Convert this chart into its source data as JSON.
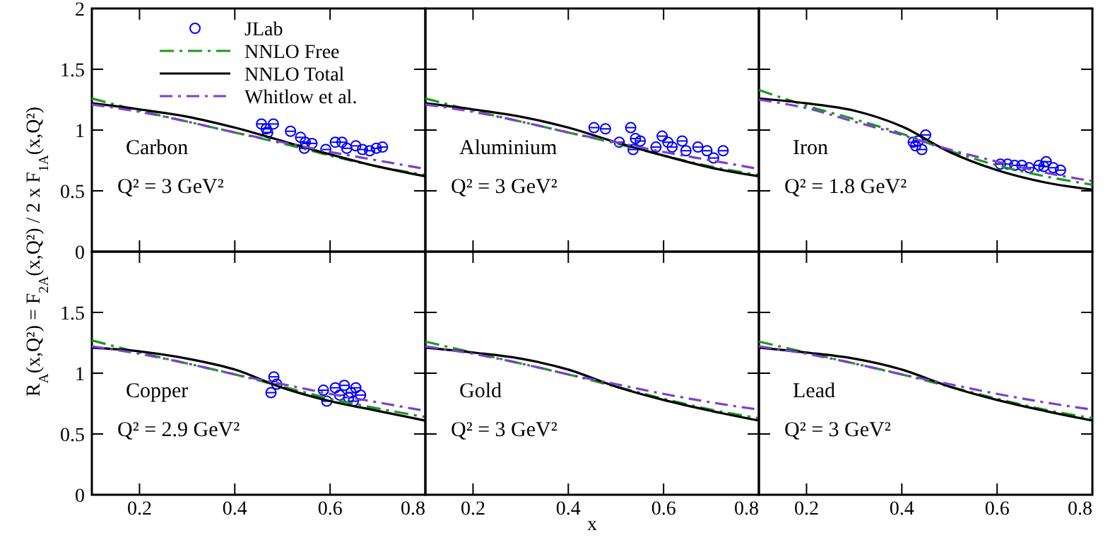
{
  "chart_data": [
    {
      "type": "line",
      "ylabel": "R$_{A}$(x,Q²) = F$_{2A}$(x,Q²) / 2 x F$_{1A}$(x,Q²)",
      "annotations": [
        "Carbon",
        "Q² = 3 GeV²"
      ],
      "xlim": [
        0.1,
        0.8
      ],
      "ylim": [
        0,
        2
      ],
      "xticks": [
        0.2,
        0.4,
        0.6,
        0.8
      ],
      "yticks": [
        0,
        0.5,
        1,
        1.5,
        2
      ],
      "tick_labels": "y",
      "legend": "top",
      "series": [
        {
          "name": "JLab",
          "type": "scatter",
          "marker": "circle",
          "color": "#0000ff",
          "x": [
            0.456,
            0.466,
            0.481,
            0.469,
            0.517,
            0.538,
            0.548,
            0.562,
            0.546,
            0.591,
            0.611,
            0.625,
            0.635,
            0.654,
            0.668,
            0.683,
            0.697,
            0.71
          ],
          "values": [
            1.05,
            1.01,
            1.05,
            0.98,
            0.99,
            0.94,
            0.9,
            0.89,
            0.85,
            0.84,
            0.9,
            0.9,
            0.85,
            0.87,
            0.84,
            0.83,
            0.85,
            0.86
          ],
          "xerrors": [
            0.01,
            0.01,
            0.01,
            0.01,
            0.01,
            0.01,
            0.01,
            0.01,
            0.01,
            0.01,
            0.01,
            0.01,
            0.01,
            0.01,
            0.01,
            0.01,
            0.01,
            0.01
          ]
        },
        {
          "name": "NNLO Free",
          "type": "line",
          "line_style": "dashdot",
          "color": "#1a9a1a",
          "x": [
            0.1,
            0.2,
            0.3,
            0.4,
            0.5,
            0.6,
            0.7,
            0.8
          ],
          "values": [
            1.26,
            1.16,
            1.07,
            0.98,
            0.89,
            0.79,
            0.7,
            0.63
          ]
        },
        {
          "name": "NNLO Total",
          "type": "line",
          "line_style": "solid",
          "color": "#000000",
          "x": [
            0.1,
            0.2,
            0.3,
            0.4,
            0.5,
            0.6,
            0.7,
            0.8
          ],
          "values": [
            1.22,
            1.17,
            1.11,
            1.02,
            0.91,
            0.8,
            0.7,
            0.62
          ]
        },
        {
          "name": "Whitlow et al.",
          "type": "line",
          "line_style": "dashed",
          "color": "#7b3fd0",
          "x": [
            0.1,
            0.2,
            0.3,
            0.4,
            0.5,
            0.6,
            0.7,
            0.8
          ],
          "values": [
            1.21,
            1.15,
            1.07,
            0.98,
            0.9,
            0.82,
            0.75,
            0.68
          ]
        }
      ]
    },
    {
      "type": "line",
      "annotations": [
        "Aluminium",
        "Q² = 3 GeV²"
      ],
      "xlim": [
        0.1,
        0.8
      ],
      "ylim": [
        0,
        2
      ],
      "xticks": [
        0.2,
        0.4,
        0.6,
        0.8
      ],
      "yticks": [
        0,
        0.5,
        1,
        1.5,
        2
      ],
      "tick_labels": false,
      "series": [
        {
          "type": "scatter",
          "marker": "circle",
          "color": "#0000ff",
          "x": [
            0.454,
            0.478,
            0.531,
            0.507,
            0.536,
            0.541,
            0.551,
            0.584,
            0.597,
            0.609,
            0.618,
            0.639,
            0.647,
            0.672,
            0.691,
            0.705,
            0.725
          ],
          "values": [
            1.02,
            1.01,
            1.02,
            0.9,
            0.84,
            0.93,
            0.91,
            0.86,
            0.95,
            0.9,
            0.86,
            0.91,
            0.83,
            0.86,
            0.83,
            0.77,
            0.83
          ],
          "xerrors": [
            0.01,
            0.01,
            0.01,
            0.01,
            0.01,
            0.01,
            0.01,
            0.01,
            0.01,
            0.01,
            0.01,
            0.01,
            0.01,
            0.01,
            0.01,
            0.01,
            0.01
          ]
        },
        {
          "type": "line",
          "line_style": "dashdot",
          "color": "#1a9a1a",
          "x": [
            0.1,
            0.2,
            0.3,
            0.4,
            0.5,
            0.6,
            0.7,
            0.8
          ],
          "values": [
            1.26,
            1.16,
            1.07,
            0.98,
            0.89,
            0.79,
            0.7,
            0.63
          ]
        },
        {
          "type": "line",
          "line_style": "solid",
          "color": "#000000",
          "x": [
            0.1,
            0.2,
            0.3,
            0.4,
            0.5,
            0.6,
            0.7,
            0.8
          ],
          "values": [
            1.22,
            1.17,
            1.11,
            1.02,
            0.9,
            0.79,
            0.69,
            0.62
          ]
        },
        {
          "type": "line",
          "line_style": "dashed",
          "color": "#7b3fd0",
          "x": [
            0.1,
            0.2,
            0.3,
            0.4,
            0.5,
            0.6,
            0.7,
            0.8
          ],
          "values": [
            1.21,
            1.15,
            1.07,
            0.98,
            0.9,
            0.82,
            0.75,
            0.68
          ]
        }
      ]
    },
    {
      "type": "line",
      "annotations": [
        "Iron",
        "Q² = 1.8 GeV²"
      ],
      "xlim": [
        0.1,
        0.8
      ],
      "ylim": [
        0,
        2
      ],
      "xticks": [
        0.2,
        0.4,
        0.6,
        0.8
      ],
      "yticks": [
        0,
        0.5,
        1,
        1.5,
        2
      ],
      "tick_labels": false,
      "series": [
        {
          "type": "scatter",
          "marker": "circle",
          "color": "#0000ff",
          "x": [
            0.424,
            0.434,
            0.45,
            0.429,
            0.442,
            0.607,
            0.622,
            0.637,
            0.652,
            0.667,
            0.688,
            0.698,
            0.703,
            0.718,
            0.733
          ],
          "values": [
            0.9,
            0.91,
            0.96,
            0.87,
            0.84,
            0.72,
            0.72,
            0.71,
            0.71,
            0.69,
            0.71,
            0.7,
            0.74,
            0.69,
            0.67
          ],
          "xerrors": [
            0.01,
            0.01,
            0.01,
            0.01,
            0.01,
            0.01,
            0.01,
            0.01,
            0.01,
            0.01,
            0.01,
            0.01,
            0.01,
            0.01,
            0.01
          ]
        },
        {
          "type": "line",
          "line_style": "dashdot",
          "color": "#1a9a1a",
          "x": [
            0.1,
            0.2,
            0.3,
            0.4,
            0.5,
            0.6,
            0.7,
            0.8
          ],
          "values": [
            1.33,
            1.2,
            1.09,
            0.97,
            0.83,
            0.71,
            0.62,
            0.55
          ]
        },
        {
          "type": "line",
          "line_style": "solid",
          "color": "#000000",
          "x": [
            0.1,
            0.2,
            0.3,
            0.4,
            0.5,
            0.6,
            0.7,
            0.8
          ],
          "values": [
            1.26,
            1.22,
            1.16,
            1.03,
            0.82,
            0.67,
            0.57,
            0.51
          ]
        },
        {
          "type": "line",
          "line_style": "dashed",
          "color": "#7b3fd0",
          "x": [
            0.1,
            0.2,
            0.3,
            0.4,
            0.5,
            0.6,
            0.7,
            0.8
          ],
          "values": [
            1.25,
            1.18,
            1.07,
            0.96,
            0.84,
            0.74,
            0.65,
            0.58
          ]
        }
      ]
    },
    {
      "type": "line",
      "annotations": [
        "Copper",
        "Q² = 2.9 GeV²"
      ],
      "xlim": [
        0.1,
        0.8
      ],
      "ylim": [
        0,
        2
      ],
      "xticks": [
        0.2,
        0.4,
        0.6,
        0.8
      ],
      "yticks": [
        0,
        0.5,
        1,
        1.5
      ],
      "series": [
        {
          "type": "scatter",
          "marker": "circle",
          "color": "#0000ff",
          "x": [
            0.482,
            0.488,
            0.476,
            0.586,
            0.593,
            0.611,
            0.62,
            0.63,
            0.639,
            0.644,
            0.649,
            0.654,
            0.664
          ],
          "values": [
            0.97,
            0.91,
            0.84,
            0.86,
            0.77,
            0.88,
            0.82,
            0.9,
            0.8,
            0.84,
            0.77,
            0.88,
            0.82
          ],
          "xerrors": [
            0.01,
            0.01,
            0.01,
            0.01,
            0.01,
            0.01,
            0.01,
            0.01,
            0.01,
            0.01,
            0.01,
            0.01,
            0.01
          ]
        },
        {
          "type": "line",
          "line_style": "dashdot",
          "color": "#1a9a1a",
          "x": [
            0.1,
            0.2,
            0.3,
            0.4,
            0.5,
            0.6,
            0.7,
            0.8
          ],
          "values": [
            1.27,
            1.17,
            1.08,
            0.99,
            0.89,
            0.79,
            0.71,
            0.64
          ]
        },
        {
          "type": "line",
          "line_style": "solid",
          "color": "#000000",
          "x": [
            0.1,
            0.2,
            0.3,
            0.4,
            0.5,
            0.6,
            0.7,
            0.8
          ],
          "values": [
            1.21,
            1.18,
            1.12,
            1.03,
            0.88,
            0.77,
            0.69,
            0.61
          ]
        },
        {
          "type": "line",
          "line_style": "dashed",
          "color": "#7b3fd0",
          "x": [
            0.1,
            0.2,
            0.3,
            0.4,
            0.5,
            0.6,
            0.7,
            0.8
          ],
          "values": [
            1.22,
            1.16,
            1.08,
            0.99,
            0.91,
            0.83,
            0.76,
            0.69
          ]
        }
      ]
    },
    {
      "type": "line",
      "xlabel": "x",
      "annotations": [
        "Gold",
        "Q² = 3 GeV²"
      ],
      "xlim": [
        0.1,
        0.8
      ],
      "ylim": [
        0,
        2
      ],
      "xticks": [
        0.2,
        0.4,
        0.6,
        0.8
      ],
      "yticks": [
        0,
        0.5,
        1,
        1.5,
        2
      ],
      "tick_labels": "x",
      "series": [
        {
          "type": "line",
          "line_style": "dashdot",
          "color": "#1a9a1a",
          "x": [
            0.1,
            0.2,
            0.3,
            0.4,
            0.5,
            0.6,
            0.7,
            0.8
          ],
          "values": [
            1.26,
            1.17,
            1.08,
            0.99,
            0.89,
            0.79,
            0.7,
            0.63
          ]
        },
        {
          "type": "line",
          "line_style": "solid",
          "color": "#000000",
          "x": [
            0.1,
            0.2,
            0.3,
            0.4,
            0.5,
            0.6,
            0.7,
            0.8
          ],
          "values": [
            1.21,
            1.17,
            1.12,
            1.03,
            0.89,
            0.78,
            0.69,
            0.61
          ]
        },
        {
          "type": "line",
          "line_style": "dashed",
          "color": "#7b3fd0",
          "x": [
            0.1,
            0.2,
            0.3,
            0.4,
            0.5,
            0.6,
            0.7,
            0.8
          ],
          "values": [
            1.22,
            1.16,
            1.08,
            0.99,
            0.91,
            0.83,
            0.76,
            0.7
          ]
        }
      ]
    },
    {
      "type": "line",
      "annotations": [
        "Lead",
        "Q² = 3 GeV²"
      ],
      "xlim": [
        0.1,
        0.8
      ],
      "ylim": [
        0,
        2
      ],
      "xticks": [
        0.2,
        0.4,
        0.6,
        0.8
      ],
      "yticks": [
        0,
        0.5,
        1,
        1.5,
        2
      ],
      "tick_labels": "x",
      "series": [
        {
          "type": "line",
          "line_style": "dashdot",
          "color": "#1a9a1a",
          "x": [
            0.1,
            0.2,
            0.3,
            0.4,
            0.5,
            0.6,
            0.7,
            0.8
          ],
          "values": [
            1.26,
            1.17,
            1.08,
            0.99,
            0.89,
            0.79,
            0.7,
            0.63
          ]
        },
        {
          "type": "line",
          "line_style": "solid",
          "color": "#000000",
          "x": [
            0.1,
            0.2,
            0.3,
            0.4,
            0.5,
            0.6,
            0.7,
            0.8
          ],
          "values": [
            1.21,
            1.17,
            1.12,
            1.03,
            0.89,
            0.78,
            0.69,
            0.61
          ]
        },
        {
          "type": "line",
          "line_style": "dashed",
          "color": "#7b3fd0",
          "x": [
            0.1,
            0.2,
            0.3,
            0.4,
            0.5,
            0.6,
            0.7,
            0.8
          ],
          "values": [
            1.22,
            1.16,
            1.08,
            0.99,
            0.91,
            0.83,
            0.76,
            0.7
          ]
        }
      ]
    }
  ]
}
